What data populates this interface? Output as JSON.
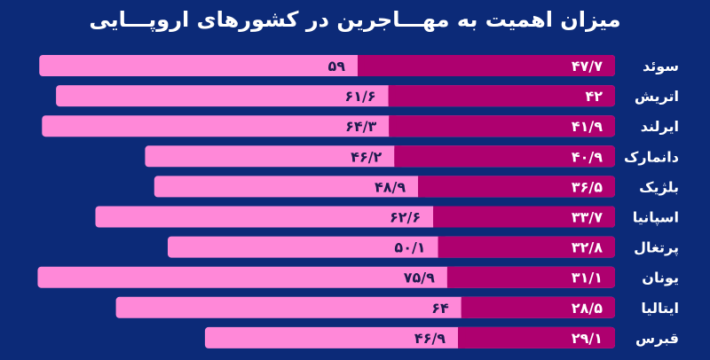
{
  "chart_data": {
    "type": "bar",
    "orientation": "horizontal-stacked",
    "direction": "rtl",
    "title": "میزان اهمیت به مهـــاجرین در کشورهای اروپـــایی",
    "categories": [
      "سوئد",
      "اتریش",
      "ایرلند",
      "دانمارک",
      "بلژیک",
      "اسپانیا",
      "پرتغال",
      "یونان",
      "ایتالیا",
      "قبرس"
    ],
    "series": [
      {
        "values": [
          47.7,
          42,
          41.9,
          40.9,
          36.5,
          33.7,
          32.8,
          31.1,
          28.5,
          29.1
        ],
        "color": "#ae006f"
      },
      {
        "values": [
          59,
          61.6,
          64.3,
          46.2,
          48.9,
          62.6,
          50.1,
          75.9,
          64,
          46.9
        ],
        "color": "#ff88d8"
      }
    ],
    "grid": false,
    "legend": "none"
  },
  "colors": {
    "background": "#0c2a78",
    "label_dark": "#1c1a4e",
    "label_light": "#ffffff"
  }
}
